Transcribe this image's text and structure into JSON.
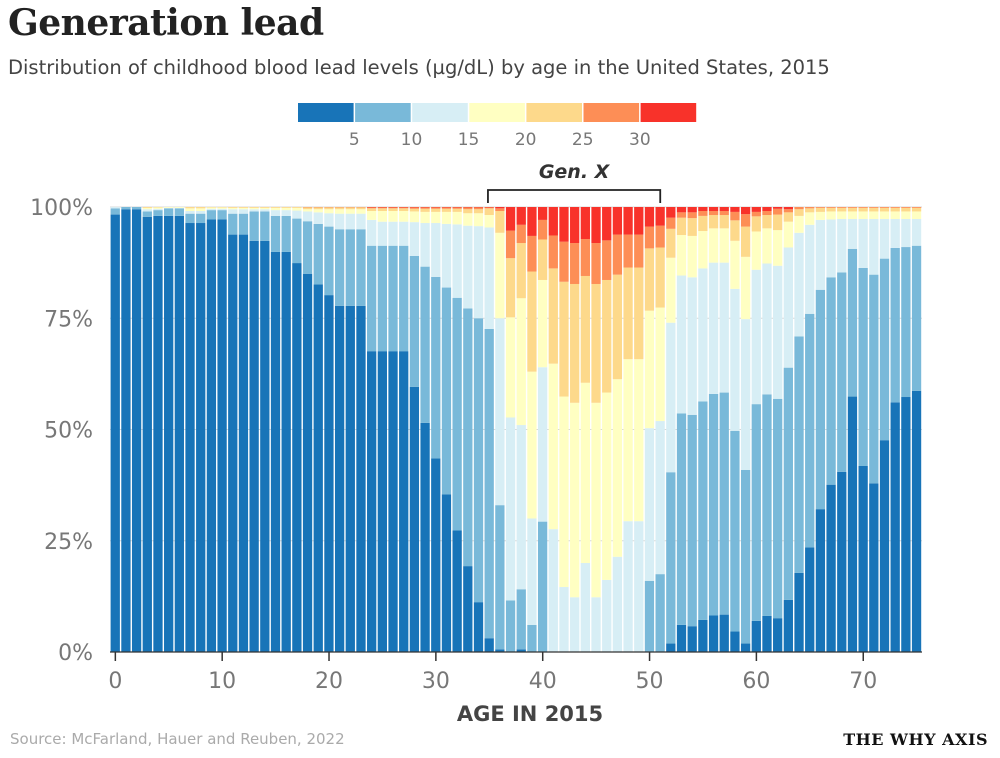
{
  "title": "Generation lead",
  "subtitle": "Distribution of childhood blood lead levels (µg/dL) by age in the United States, 2015",
  "source": "Source: McFarland, Hauer and Reuben, 2022",
  "brand": "THE WHY AXIS",
  "chart_data": {
    "type": "bar",
    "stacked": "percent",
    "xlabel": "AGE IN 2015",
    "ylabel": "",
    "ylim": [
      0,
      100
    ],
    "y_ticks": [
      "0%",
      "25%",
      "50%",
      "75%",
      "100%"
    ],
    "y_tick_values": [
      0,
      25,
      50,
      75,
      100
    ],
    "x_ticks": [
      "0",
      "10",
      "20",
      "30",
      "40",
      "50",
      "60",
      "70"
    ],
    "x_tick_values": [
      0,
      10,
      20,
      30,
      40,
      50,
      60,
      70
    ],
    "grid": "horizontal",
    "legend_placement": "top-center",
    "legend_labels": [
      "5",
      "10",
      "15",
      "20",
      "25",
      "30"
    ],
    "colors": [
      "#1874b8",
      "#79b9d9",
      "#d7eef5",
      "#ffffc2",
      "#fdd98b",
      "#fd8e56",
      "#f8322a"
    ],
    "annotation": {
      "label": "Gen. X",
      "from_age": 35,
      "to_age": 51
    },
    "thresholds": [
      5,
      10,
      15,
      20,
      25,
      30
    ],
    "ages": [
      0,
      1,
      2,
      3,
      4,
      5,
      6,
      7,
      8,
      9,
      10,
      11,
      12,
      13,
      14,
      15,
      16,
      17,
      18,
      19,
      20,
      21,
      22,
      23,
      24,
      25,
      26,
      27,
      28,
      29,
      30,
      31,
      32,
      33,
      34,
      35,
      36,
      37,
      38,
      39,
      40,
      41,
      42,
      43,
      44,
      45,
      46,
      47,
      48,
      49,
      50,
      51,
      52,
      53,
      54,
      55,
      56,
      57,
      58,
      59,
      60,
      61,
      62,
      63,
      64,
      65,
      66,
      67,
      68,
      69,
      70,
      71,
      72,
      73,
      74,
      75
    ],
    "cumulative_percent_below_threshold": [
      [
        98.3,
        99.7,
        100,
        100,
        100,
        100
      ],
      [
        99.5,
        100,
        100,
        100,
        100,
        100
      ],
      [
        99.5,
        100,
        100,
        100,
        100,
        100
      ],
      [
        97.8,
        99,
        99.5,
        99.8,
        100,
        100
      ],
      [
        98,
        99.3,
        99.6,
        99.9,
        100,
        100
      ],
      [
        98,
        99.7,
        99.8,
        100,
        100,
        100
      ],
      [
        98,
        99.7,
        99.8,
        100,
        100,
        100
      ],
      [
        96.4,
        98.5,
        99.1,
        99.7,
        100,
        100
      ],
      [
        96.4,
        98.5,
        99.1,
        99.7,
        100,
        100
      ],
      [
        97.2,
        99.3,
        99.6,
        99.9,
        100,
        100
      ],
      [
        97.2,
        99.3,
        99.6,
        99.9,
        100,
        100
      ],
      [
        93.8,
        98.5,
        99.5,
        99.8,
        100,
        100
      ],
      [
        93.8,
        98.5,
        99.5,
        99.8,
        100,
        100
      ],
      [
        92.4,
        99,
        99.5,
        99.8,
        100,
        100
      ],
      [
        92.4,
        99,
        99.5,
        99.8,
        100,
        100
      ],
      [
        89.9,
        98,
        99.3,
        99.8,
        100,
        100
      ],
      [
        89.9,
        98,
        99.3,
        99.8,
        100,
        100
      ],
      [
        87.4,
        97.4,
        99.2,
        99.8,
        100,
        100
      ],
      [
        85,
        96.8,
        99,
        99.5,
        99.9,
        100
      ],
      [
        82.6,
        96.2,
        98.8,
        99.5,
        99.9,
        100
      ],
      [
        80.2,
        95.6,
        98.6,
        99.5,
        99.9,
        100
      ],
      [
        77.8,
        95,
        98.5,
        99.5,
        99.9,
        100
      ],
      [
        77.8,
        95,
        98.5,
        99.5,
        99.9,
        100
      ],
      [
        77.8,
        95,
        98.5,
        99.5,
        99.9,
        100
      ],
      [
        67.6,
        91.3,
        97.1,
        99.1,
        99.7,
        99.9
      ],
      [
        67.6,
        91.3,
        96.7,
        99.1,
        99.7,
        99.9
      ],
      [
        67.6,
        91.3,
        96.7,
        99.1,
        99.7,
        99.9
      ],
      [
        67.6,
        91.3,
        96.7,
        99.1,
        99.7,
        99.9
      ],
      [
        59.6,
        89,
        96.6,
        99,
        99.6,
        99.9
      ],
      [
        51.5,
        86.6,
        96.4,
        98.9,
        99.6,
        99.9
      ],
      [
        43.5,
        84.3,
        96.4,
        98.9,
        99.6,
        99.9
      ],
      [
        35.4,
        81.9,
        96.2,
        98.9,
        99.6,
        99.9
      ],
      [
        27.3,
        79.6,
        96.1,
        98.9,
        99.6,
        99.9
      ],
      [
        19.3,
        77.2,
        95.8,
        98.6,
        99.5,
        99.9
      ],
      [
        11.2,
        75,
        95.7,
        98.6,
        99.5,
        99.9
      ],
      [
        3.1,
        72.6,
        95.4,
        98.2,
        99.7,
        99.9
      ],
      [
        0.6,
        33,
        75,
        94.2,
        99.1,
        99.7
      ],
      [
        0,
        11.6,
        52.7,
        75.2,
        88.5,
        94.7
      ],
      [
        0.6,
        14.1,
        51,
        79.5,
        91.9,
        96
      ],
      [
        0,
        6.1,
        30,
        63,
        85.5,
        93.5
      ],
      [
        0,
        29.3,
        64,
        83.6,
        92.7,
        97.1
      ],
      [
        0,
        0,
        27.6,
        64.8,
        86.2,
        93.6
      ],
      [
        0,
        0,
        14.6,
        57.4,
        83.2,
        92.2
      ],
      [
        0,
        0,
        12.3,
        56,
        82.7,
        91.9
      ],
      [
        0,
        0,
        20,
        60.5,
        84.5,
        92.8
      ],
      [
        0,
        0,
        12.3,
        56,
        82.7,
        91.9
      ],
      [
        0,
        0,
        16.2,
        58.3,
        83.6,
        92.5
      ],
      [
        0,
        0,
        21.4,
        61.3,
        84.8,
        93.8
      ],
      [
        0,
        0,
        29.4,
        65.8,
        86.4,
        93.8
      ],
      [
        0,
        0,
        29.4,
        65.8,
        86.4,
        93.8
      ],
      [
        0,
        16,
        50.3,
        76.7,
        90.7,
        95.6
      ],
      [
        0,
        17.5,
        51.9,
        77.4,
        90.9,
        95.8
      ],
      [
        1.9,
        40.4,
        74,
        88.6,
        95.1,
        97.6
      ],
      [
        6.1,
        53.6,
        84.6,
        93.7,
        97.6,
        98.8
      ],
      [
        5.8,
        53.3,
        84.2,
        93.5,
        97.5,
        98.8
      ],
      [
        7.2,
        56.3,
        86.2,
        94.6,
        98,
        99.1
      ],
      [
        8.2,
        58,
        87.5,
        95.2,
        98.2,
        99.1
      ],
      [
        8.4,
        58.3,
        87.5,
        95.2,
        98.2,
        99.1
      ],
      [
        4.6,
        49.7,
        81.6,
        92.4,
        97,
        98.9
      ],
      [
        1.9,
        40.9,
        74.8,
        88.8,
        95.6,
        98.4
      ],
      [
        7,
        55.7,
        85.9,
        94.5,
        97.9,
        98.9
      ],
      [
        8.1,
        57.9,
        87.3,
        95.2,
        98.2,
        99.1
      ],
      [
        7.6,
        56.9,
        86.8,
        94.8,
        98.3,
        99.6
      ],
      [
        11.7,
        63.9,
        90.9,
        96.7,
        98.8,
        99.5
      ],
      [
        17.8,
        70.9,
        94.2,
        98,
        99.5,
        100
      ],
      [
        23.5,
        76,
        96,
        98.8,
        99.7,
        100
      ],
      [
        32.1,
        81.4,
        97.1,
        98.9,
        99.8,
        100
      ],
      [
        37.6,
        84.2,
        97.2,
        99,
        99.8,
        100
      ],
      [
        40.5,
        85.3,
        97.3,
        99,
        99.8,
        100
      ],
      [
        57.4,
        90.6,
        97.3,
        99,
        99.8,
        100
      ],
      [
        41.8,
        86.3,
        97.3,
        99,
        99.8,
        100
      ],
      [
        37.9,
        84.8,
        97.3,
        99,
        99.8,
        100
      ],
      [
        47.6,
        88.4,
        97.3,
        99,
        99.8,
        100
      ],
      [
        56.1,
        90.8,
        97.3,
        99,
        99.8,
        100
      ],
      [
        57.3,
        91,
        97.3,
        99,
        99.8,
        100
      ],
      [
        58.7,
        91.3,
        97.3,
        99,
        99.8,
        100
      ]
    ]
  }
}
